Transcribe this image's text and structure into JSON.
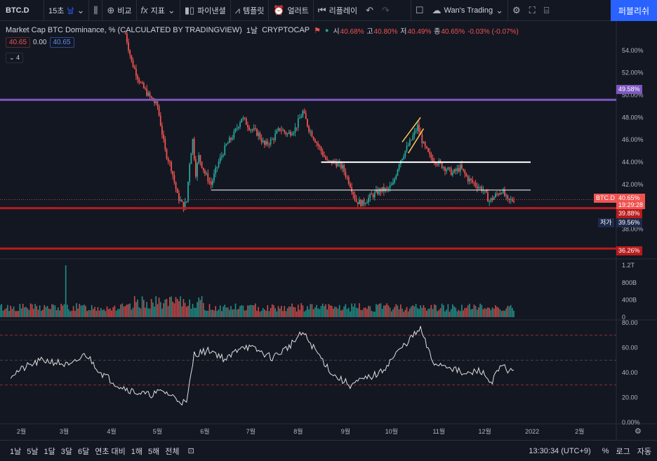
{
  "toolbar": {
    "symbol": "BTC.D",
    "interval": "15초",
    "interval_unit": "날",
    "compare": "비교",
    "indicators": "지표",
    "financials": "파이낸셜",
    "templates": "템플릿",
    "alert": "얼러트",
    "replay": "리플레이",
    "layout_name": "Wan's Trading",
    "publish": "퍼블리쉬"
  },
  "legend": {
    "title": "Market Cap BTC Dominance, % (CALCULATED BY TRADINGVIEW)",
    "timeframe": "1날",
    "source": "CRYPTOCAP",
    "open_label": "시",
    "open": "40.68%",
    "high_label": "고",
    "high": "40.80%",
    "low_label": "저",
    "low": "40.49%",
    "close_label": "종",
    "close": "40.65%",
    "change": "-0.03% (-0.07%)",
    "bid": "40.65",
    "spread": "0.00",
    "ask": "40.65",
    "collapsed_count": "4"
  },
  "price_axis": [
    "54.00%",
    "52.00%",
    "50.00%",
    "48.00%",
    "46.00%",
    "44.00%",
    "42.00%",
    "38.00%"
  ],
  "price_tags": {
    "purple_line": "49.58%",
    "symbol_tag": "BTC.D",
    "current": "40.65%",
    "countdown": "19:29:28",
    "red_line_1": "39.88%",
    "low_label": "저가",
    "low_value": "39.56%",
    "red_line_2": "36.26%"
  },
  "volume_axis": [
    "1.2T",
    "800B",
    "400B",
    "0"
  ],
  "rsi_axis": [
    "80.00",
    "60.00",
    "40.00",
    "20.00",
    "0.00%"
  ],
  "time_axis": [
    "2월",
    "3월",
    "4월",
    "5월",
    "6월",
    "7월",
    "8월",
    "9월",
    "10월",
    "11월",
    "12월",
    "2022",
    "2월"
  ],
  "bottombar": {
    "ranges": [
      "1날",
      "5날",
      "1달",
      "3달",
      "6달",
      "연초 대비",
      "1해",
      "5해",
      "전체"
    ],
    "time": "13:30:34 (UTC+9)",
    "percent": "%",
    "log": "로그",
    "auto": "자동"
  },
  "colors": {
    "up": "#26a69a",
    "down": "#ef5350",
    "purple_line": "#7e57c2",
    "red_line": "#b71c1c",
    "accent": "#2962ff",
    "background": "#131722"
  },
  "chart_data": {
    "type": "line",
    "title": "Market Cap BTC Dominance, % (CALCULATED BY TRADINGVIEW)",
    "ylim": [
      35.4,
      56.0
    ],
    "x_months": [
      "2월",
      "3월",
      "4월",
      "5월",
      "6월",
      "7월",
      "8월",
      "9월",
      "10월",
      "11월",
      "12월",
      "2022",
      "2월"
    ],
    "series": [
      {
        "name": "BTC.D",
        "points": [
          [
            "2021-04-10",
            55.5
          ],
          [
            "2021-04-14",
            53.0
          ],
          [
            "2021-04-20",
            51.0
          ],
          [
            "2021-04-25",
            50.0
          ],
          [
            "2021-05-01",
            49.0
          ],
          [
            "2021-05-06",
            45.0
          ],
          [
            "2021-05-10",
            43.5
          ],
          [
            "2021-05-14",
            41.0
          ],
          [
            "2021-05-18",
            40.0
          ],
          [
            "2021-05-20",
            40.5
          ],
          [
            "2021-05-22",
            44.0
          ],
          [
            "2021-05-24",
            46.0
          ],
          [
            "2021-05-26",
            43.0
          ],
          [
            "2021-05-28",
            44.5
          ],
          [
            "2021-06-01",
            43.0
          ],
          [
            "2021-06-05",
            42.0
          ],
          [
            "2021-06-10",
            44.0
          ],
          [
            "2021-06-15",
            45.5
          ],
          [
            "2021-06-20",
            46.5
          ],
          [
            "2021-06-25",
            48.0
          ],
          [
            "2021-07-01",
            47.0
          ],
          [
            "2021-07-06",
            46.5
          ],
          [
            "2021-07-10",
            45.5
          ],
          [
            "2021-07-15",
            46.0
          ],
          [
            "2021-07-20",
            47.0
          ],
          [
            "2021-07-25",
            46.5
          ],
          [
            "2021-07-30",
            47.0
          ],
          [
            "2021-08-04",
            48.5
          ],
          [
            "2021-08-08",
            47.0
          ],
          [
            "2021-08-12",
            46.0
          ],
          [
            "2021-08-16",
            45.0
          ],
          [
            "2021-08-20",
            44.0
          ],
          [
            "2021-08-25",
            44.0
          ],
          [
            "2021-08-30",
            43.5
          ],
          [
            "2021-09-04",
            42.0
          ],
          [
            "2021-09-08",
            40.5
          ],
          [
            "2021-09-12",
            40.3
          ],
          [
            "2021-09-18",
            41.0
          ],
          [
            "2021-09-24",
            41.5
          ],
          [
            "2021-09-28",
            41.5
          ],
          [
            "2021-10-02",
            42.0
          ],
          [
            "2021-10-06",
            44.0
          ],
          [
            "2021-10-10",
            45.0
          ],
          [
            "2021-10-14",
            46.0
          ],
          [
            "2021-10-18",
            47.2
          ],
          [
            "2021-10-22",
            45.5
          ],
          [
            "2021-10-26",
            44.5
          ],
          [
            "2021-10-31",
            44.0
          ],
          [
            "2021-11-05",
            43.5
          ],
          [
            "2021-11-10",
            43.0
          ],
          [
            "2021-11-15",
            43.5
          ],
          [
            "2021-11-20",
            42.5
          ],
          [
            "2021-11-25",
            42.0
          ],
          [
            "2021-11-30",
            41.5
          ],
          [
            "2021-12-04",
            40.5
          ],
          [
            "2021-12-08",
            41.0
          ],
          [
            "2021-12-12",
            41.5
          ],
          [
            "2021-12-16",
            40.5
          ],
          [
            "2021-12-20",
            40.65
          ]
        ]
      }
    ],
    "horizontal_lines": [
      {
        "value": 49.58,
        "color": "#7e57c2"
      },
      {
        "value": 39.88,
        "color": "#b71c1c"
      },
      {
        "value": 36.26,
        "color": "#b71c1c"
      }
    ],
    "trend_segments": [
      {
        "from": [
          "2021-08-16",
          44.0
        ],
        "to": [
          "2021-12-31",
          44.0
        ],
        "color": "#ffffff"
      },
      {
        "from": [
          "2021-06-05",
          41.5
        ],
        "to": [
          "2021-12-31",
          41.5
        ],
        "color": "#ffffff"
      },
      {
        "from": [
          "2021-10-08",
          45.8
        ],
        "to": [
          "2021-10-20",
          48.0
        ],
        "color": "#f9c74f"
      },
      {
        "from": [
          "2021-10-12",
          44.8
        ],
        "to": [
          "2021-10-22",
          47.0
        ],
        "color": "#f9c74f"
      }
    ],
    "volume": {
      "ylim": [
        0,
        1300
      ],
      "unit": "B",
      "spike": {
        "date": "2021-03-02",
        "value": 1200
      },
      "typical": 250
    },
    "rsi": {
      "ylim": [
        0,
        80
      ],
      "levels": [
        70,
        50,
        30
      ],
      "points": [
        [
          "2021-01-25",
          38
        ],
        [
          "2021-02-05",
          45
        ],
        [
          "2021-02-15",
          50
        ],
        [
          "2021-02-25",
          48
        ],
        [
          "2021-03-05",
          45
        ],
        [
          "2021-03-15",
          55
        ],
        [
          "2021-03-25",
          40
        ],
        [
          "2021-04-05",
          30
        ],
        [
          "2021-04-15",
          25
        ],
        [
          "2021-04-25",
          22
        ],
        [
          "2021-05-05",
          25
        ],
        [
          "2021-05-15",
          18
        ],
        [
          "2021-05-20",
          15
        ],
        [
          "2021-05-25",
          55
        ],
        [
          "2021-06-05",
          58
        ],
        [
          "2021-06-15",
          50
        ],
        [
          "2021-06-25",
          62
        ],
        [
          "2021-07-05",
          58
        ],
        [
          "2021-07-15",
          52
        ],
        [
          "2021-07-25",
          60
        ],
        [
          "2021-08-04",
          72
        ],
        [
          "2021-08-14",
          55
        ],
        [
          "2021-08-24",
          38
        ],
        [
          "2021-09-04",
          30
        ],
        [
          "2021-09-14",
          35
        ],
        [
          "2021-09-24",
          40
        ],
        [
          "2021-10-04",
          55
        ],
        [
          "2021-10-14",
          68
        ],
        [
          "2021-10-20",
          75
        ],
        [
          "2021-10-28",
          48
        ],
        [
          "2021-11-08",
          45
        ],
        [
          "2021-11-18",
          38
        ],
        [
          "2021-11-28",
          42
        ],
        [
          "2021-12-05",
          32
        ],
        [
          "2021-12-12",
          45
        ],
        [
          "2021-12-20",
          40
        ]
      ]
    }
  }
}
